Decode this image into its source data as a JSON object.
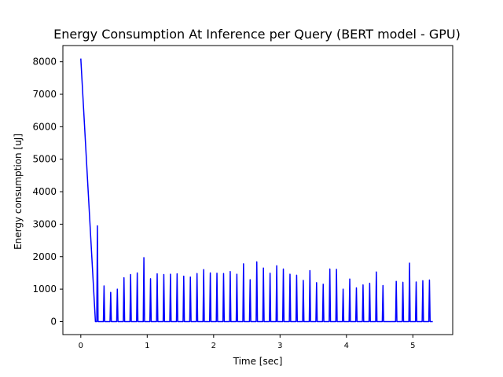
{
  "chart_data": {
    "type": "line",
    "title": "Energy Consumption At Inference per Query (BERT model - GPU)",
    "xlabel": "Time [sec]",
    "ylabel": "Energy consumption [uJ]",
    "xlim": [
      -0.27,
      5.6
    ],
    "ylim": [
      -400,
      8500
    ],
    "xticks": [
      0,
      1,
      2,
      3,
      4,
      5
    ],
    "yticks": [
      0,
      1000,
      2000,
      3000,
      4000,
      5000,
      6000,
      7000,
      8000
    ],
    "grid": false,
    "legend": false,
    "series_color": "#0000ff",
    "series": [
      {
        "x": [
          0.0,
          0.22,
          0.24,
          0.25,
          0.26,
          0.34,
          0.35,
          0.36,
          0.44,
          0.45,
          0.46,
          0.54,
          0.55,
          0.56,
          0.64,
          0.65,
          0.66,
          0.74,
          0.75,
          0.76,
          0.84,
          0.85,
          0.86,
          0.94,
          0.95,
          0.96,
          1.04,
          1.05,
          1.06,
          1.14,
          1.15,
          1.16,
          1.24,
          1.25,
          1.26,
          1.34,
          1.35,
          1.36,
          1.44,
          1.45,
          1.46,
          1.54,
          1.55,
          1.56,
          1.64,
          1.65,
          1.66,
          1.74,
          1.75,
          1.76,
          1.84,
          1.85,
          1.86,
          1.94,
          1.95,
          1.96,
          2.04,
          2.05,
          2.06,
          2.14,
          2.15,
          2.16,
          2.24,
          2.25,
          2.26,
          2.34,
          2.35,
          2.36,
          2.44,
          2.45,
          2.46,
          2.54,
          2.55,
          2.56,
          2.64,
          2.65,
          2.66,
          2.74,
          2.75,
          2.76,
          2.84,
          2.85,
          2.86,
          2.94,
          2.95,
          2.96,
          3.04,
          3.05,
          3.06,
          3.14,
          3.15,
          3.16,
          3.24,
          3.25,
          3.26,
          3.34,
          3.35,
          3.36,
          3.44,
          3.45,
          3.46,
          3.54,
          3.55,
          3.56,
          3.64,
          3.65,
          3.66,
          3.74,
          3.75,
          3.76,
          3.84,
          3.85,
          3.86,
          3.94,
          3.95,
          3.96,
          4.04,
          4.05,
          4.06,
          4.14,
          4.15,
          4.16,
          4.24,
          4.25,
          4.26,
          4.34,
          4.35,
          4.36,
          4.44,
          4.45,
          4.46,
          4.54,
          4.55,
          4.56,
          4.74,
          4.75,
          4.76,
          4.84,
          4.85,
          4.86,
          4.94,
          4.95,
          4.96,
          5.04,
          5.05,
          5.06,
          5.14,
          5.15,
          5.16,
          5.24,
          5.25,
          5.26,
          5.3
        ],
        "y": [
          8100,
          0,
          0,
          2950,
          0,
          0,
          1100,
          0,
          0,
          900,
          0,
          0,
          1000,
          0,
          0,
          1350,
          0,
          0,
          1450,
          0,
          0,
          1500,
          0,
          0,
          1970,
          0,
          0,
          1320,
          0,
          0,
          1470,
          0,
          0,
          1450,
          0,
          0,
          1460,
          0,
          0,
          1470,
          0,
          0,
          1400,
          0,
          0,
          1370,
          0,
          0,
          1480,
          0,
          0,
          1600,
          0,
          0,
          1500,
          0,
          0,
          1490,
          0,
          0,
          1480,
          0,
          0,
          1540,
          0,
          0,
          1460,
          0,
          0,
          1780,
          0,
          0,
          1290,
          0,
          0,
          1840,
          0,
          0,
          1650,
          0,
          0,
          1490,
          0,
          0,
          1720,
          0,
          0,
          1620,
          0,
          0,
          1460,
          0,
          0,
          1430,
          0,
          0,
          1270,
          0,
          0,
          1570,
          0,
          0,
          1200,
          0,
          0,
          1150,
          0,
          0,
          1620,
          0,
          0,
          1610,
          0,
          0,
          1000,
          0,
          0,
          1310,
          0,
          0,
          1040,
          0,
          0,
          1130,
          0,
          0,
          1180,
          0,
          0,
          1530,
          0,
          0,
          1110,
          0,
          0,
          1240,
          0,
          0,
          1210,
          0,
          0,
          1800,
          0,
          0,
          1220,
          0,
          0,
          1260,
          0,
          0,
          1280,
          0,
          0
        ]
      }
    ]
  }
}
